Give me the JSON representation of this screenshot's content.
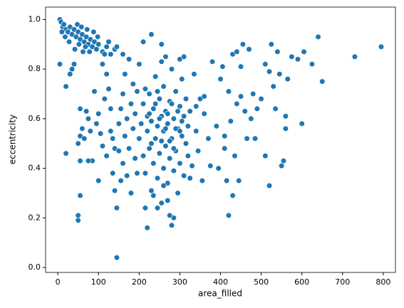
{
  "chart_data": {
    "type": "scatter",
    "x_label": "area_filled",
    "y_label": "eccentricity",
    "color": "#1f77b4",
    "xlim": [
      -30,
      830
    ],
    "ylim": [
      -0.02,
      1.05
    ],
    "xticks": [
      0,
      100,
      200,
      300,
      400,
      500,
      600,
      700,
      800
    ],
    "yticks": [
      {
        "value": 0,
        "label": "0.0"
      },
      0.2,
      0.4,
      0.6,
      0.8,
      {
        "value": 1,
        "label": "1.0"
      }
    ],
    "x": [
      5,
      8,
      12,
      15,
      20,
      25,
      30,
      35,
      40,
      45,
      50,
      55,
      60,
      65,
      70,
      75,
      80,
      85,
      90,
      95,
      100,
      110,
      120,
      130,
      42,
      52,
      62,
      72,
      88,
      10,
      18,
      28,
      48,
      58,
      68,
      78,
      98,
      140,
      125,
      115,
      5,
      20,
      30,
      35,
      40,
      55,
      60,
      55,
      50,
      55,
      55,
      50,
      50,
      20,
      70,
      75,
      80,
      85,
      90,
      95,
      100,
      105,
      110,
      115,
      120,
      125,
      130,
      135,
      135,
      140,
      140,
      145,
      145,
      150,
      150,
      155,
      155,
      160,
      160,
      165,
      165,
      170,
      170,
      175,
      175,
      180,
      180,
      185,
      185,
      190,
      190,
      195,
      195,
      110,
      100,
      75,
      65,
      120,
      130,
      145,
      160,
      200,
      210,
      230,
      255,
      215,
      220,
      200,
      205,
      210,
      210,
      215,
      215,
      220,
      220,
      225,
      225,
      230,
      230,
      235,
      235,
      240,
      240,
      245,
      245,
      250,
      250,
      255,
      255,
      260,
      260,
      265,
      265,
      270,
      270,
      275,
      275,
      280,
      280,
      285,
      285,
      290,
      290,
      295,
      295,
      300,
      300,
      305,
      305,
      310,
      310,
      315,
      315,
      320,
      320,
      325,
      330,
      255,
      265,
      280,
      285,
      275,
      300,
      310,
      245,
      235,
      260,
      270,
      290,
      250,
      240,
      230,
      300,
      280,
      265,
      275,
      285,
      295,
      305,
      225,
      245,
      255,
      260,
      270,
      340,
      345,
      350,
      355,
      360,
      360,
      370,
      375,
      380,
      335,
      340,
      325,
      400,
      405,
      410,
      410,
      415,
      420,
      420,
      425,
      430,
      430,
      435,
      440,
      440,
      445,
      450,
      450,
      455,
      460,
      465,
      470,
      475,
      480,
      485,
      490,
      500,
      510,
      510,
      520,
      520,
      525,
      530,
      535,
      540,
      545,
      550,
      555,
      560,
      560,
      565,
      575,
      590,
      600,
      605,
      625,
      640,
      650,
      730,
      795,
      395,
      390
    ],
    "y": [
      1.0,
      0.99,
      0.97,
      0.98,
      0.96,
      0.95,
      0.97,
      0.94,
      0.96,
      0.93,
      0.95,
      0.92,
      0.94,
      0.91,
      0.93,
      0.9,
      0.92,
      0.89,
      0.91,
      0.88,
      0.9,
      0.87,
      0.89,
      0.86,
      0.88,
      0.9,
      0.87,
      0.96,
      0.95,
      0.95,
      0.93,
      0.91,
      0.98,
      0.97,
      0.89,
      0.87,
      0.93,
      0.88,
      0.91,
      0.86,
      0.82,
      0.73,
      0.78,
      0.8,
      0.82,
      0.64,
      0.56,
      0.53,
      0.5,
      0.43,
      0.29,
      0.21,
      0.19,
      0.46,
      0.63,
      0.6,
      0.55,
      0.43,
      0.71,
      0.58,
      0.62,
      0.54,
      0.82,
      0.68,
      0.45,
      0.72,
      0.55,
      0.52,
      0.38,
      0.48,
      0.31,
      0.24,
      0.04,
      0.58,
      0.47,
      0.64,
      0.35,
      0.7,
      0.42,
      0.78,
      0.53,
      0.6,
      0.37,
      0.84,
      0.48,
      0.66,
      0.3,
      0.74,
      0.56,
      0.44,
      0.62,
      0.71,
      0.38,
      0.49,
      0.35,
      0.43,
      0.52,
      0.78,
      0.64,
      0.89,
      0.86,
      0.82,
      0.91,
      0.94,
      0.9,
      0.24,
      0.16,
      0.52,
      0.58,
      0.45,
      0.66,
      0.72,
      0.38,
      0.55,
      0.61,
      0.48,
      0.7,
      0.31,
      0.59,
      0.64,
      0.42,
      0.52,
      0.77,
      0.57,
      0.36,
      0.68,
      0.46,
      0.61,
      0.26,
      0.55,
      0.73,
      0.49,
      0.63,
      0.58,
      0.34,
      0.67,
      0.44,
      0.52,
      0.8,
      0.6,
      0.39,
      0.47,
      0.71,
      0.56,
      0.3,
      0.65,
      0.42,
      0.53,
      0.76,
      0.61,
      0.37,
      0.5,
      0.68,
      0.57,
      0.45,
      0.63,
      0.41,
      0.83,
      0.85,
      0.17,
      0.2,
      0.21,
      0.84,
      0.85,
      0.24,
      0.29,
      0.4,
      0.62,
      0.56,
      0.6,
      0.66,
      0.5,
      0.55,
      0.66,
      0.56,
      0.51,
      0.48,
      0.63,
      0.59,
      0.62,
      0.71,
      0.51,
      0.33,
      0.27,
      0.55,
      0.47,
      0.68,
      0.35,
      0.62,
      0.69,
      0.52,
      0.41,
      0.83,
      0.78,
      0.65,
      0.36,
      0.76,
      0.81,
      0.53,
      0.48,
      0.35,
      0.21,
      0.71,
      0.59,
      0.86,
      0.29,
      0.45,
      0.87,
      0.66,
      0.35,
      0.81,
      0.69,
      0.9,
      0.63,
      0.52,
      0.88,
      0.6,
      0.7,
      0.52,
      0.64,
      0.68,
      0.45,
      0.82,
      0.33,
      0.79,
      0.9,
      0.73,
      0.64,
      0.87,
      0.78,
      0.41,
      0.43,
      0.56,
      0.61,
      0.76,
      0.85,
      0.84,
      0.58,
      0.87,
      0.82,
      0.93,
      0.75,
      0.85,
      0.89,
      0.4,
      0.57
    ]
  }
}
